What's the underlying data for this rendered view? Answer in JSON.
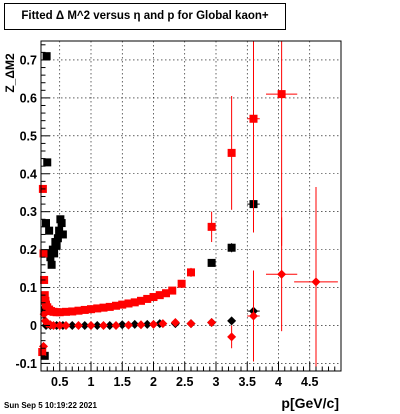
{
  "header": {
    "title": "Fitted Δ M^2 versus η and p for Global kaon+",
    "timestamp": "Sun Sep  5 10:19:22 2021"
  },
  "chart_data": {
    "type": "scatter",
    "title": "Fitted Δ M^2 versus η and p for Global kaon+",
    "xlabel": "p[GeV/c]",
    "ylabel": "Z_ΔM2",
    "xlim": [
      0.2,
      5.0
    ],
    "ylim": [
      -0.12,
      0.75
    ],
    "xticks": [
      0.5,
      1,
      1.5,
      2,
      2.5,
      3,
      3.5,
      4,
      4.5
    ],
    "xtick_labels": [
      "0.5",
      "1",
      "1.5",
      "2",
      "2.5",
      "3",
      "3.5",
      "4",
      "4.5"
    ],
    "yticks": [
      -0.1,
      0,
      0.1,
      0.2,
      0.3,
      0.4,
      0.5,
      0.6,
      0.7
    ],
    "ytick_labels": [
      "-0.1",
      "0",
      "0.1",
      "0.2",
      "0.3",
      "0.4",
      "0.5",
      "0.6",
      "0.7"
    ],
    "grid": true,
    "colors": {
      "black": "#000000",
      "red": "#ff0000"
    },
    "series": [
      {
        "marker": "square",
        "color": "#000000",
        "points": [
          {
            "x": 0.26,
            "y": -0.08
          },
          {
            "x": 0.27,
            "y": 0.04
          },
          {
            "x": 0.28,
            "y": 0.27
          },
          {
            "x": 0.29,
            "y": 0.71
          },
          {
            "x": 0.3,
            "y": 0.43
          },
          {
            "x": 0.31,
            "y": 0.19
          },
          {
            "x": 0.33,
            "y": 0.25
          },
          {
            "x": 0.35,
            "y": 0.18
          },
          {
            "x": 0.37,
            "y": 0.16
          },
          {
            "x": 0.39,
            "y": 0.2
          },
          {
            "x": 0.41,
            "y": 0.19
          },
          {
            "x": 0.43,
            "y": 0.22
          },
          {
            "x": 0.45,
            "y": 0.21
          },
          {
            "x": 0.47,
            "y": 0.23
          },
          {
            "x": 0.49,
            "y": 0.25
          },
          {
            "x": 0.51,
            "y": 0.28
          },
          {
            "x": 0.53,
            "y": 0.27
          },
          {
            "x": 0.55,
            "y": 0.24
          },
          {
            "x": 2.93,
            "y": 0.165,
            "ex": 0.04,
            "ey": 0.008
          },
          {
            "x": 3.25,
            "y": 0.205,
            "ex": 0.05,
            "ey": 0.012
          },
          {
            "x": 3.6,
            "y": 0.32,
            "ex": 0.1,
            "ey": 0.03
          }
        ]
      },
      {
        "marker": "square",
        "color": "#ff0000",
        "points": [
          {
            "x": 0.22,
            "y": -0.07
          },
          {
            "x": 0.23,
            "y": 0.36
          },
          {
            "x": 0.24,
            "y": 0.19
          },
          {
            "x": 0.25,
            "y": 0.12
          },
          {
            "x": 0.26,
            "y": 0.08
          },
          {
            "x": 0.27,
            "y": 0.065
          },
          {
            "x": 0.28,
            "y": 0.055
          },
          {
            "x": 0.3,
            "y": 0.048
          },
          {
            "x": 0.33,
            "y": 0.042
          },
          {
            "x": 0.36,
            "y": 0.038
          },
          {
            "x": 0.4,
            "y": 0.036
          },
          {
            "x": 0.45,
            "y": 0.035
          },
          {
            "x": 0.5,
            "y": 0.035
          },
          {
            "x": 0.6,
            "y": 0.036
          },
          {
            "x": 0.7,
            "y": 0.037
          },
          {
            "x": 0.8,
            "y": 0.039
          },
          {
            "x": 0.9,
            "y": 0.041
          },
          {
            "x": 1.0,
            "y": 0.043
          },
          {
            "x": 1.1,
            "y": 0.045
          },
          {
            "x": 1.2,
            "y": 0.047
          },
          {
            "x": 1.3,
            "y": 0.049
          },
          {
            "x": 1.4,
            "y": 0.052
          },
          {
            "x": 1.5,
            "y": 0.055
          },
          {
            "x": 1.6,
            "y": 0.058
          },
          {
            "x": 1.7,
            "y": 0.061
          },
          {
            "x": 1.8,
            "y": 0.065
          },
          {
            "x": 1.9,
            "y": 0.07
          },
          {
            "x": 2.0,
            "y": 0.075
          },
          {
            "x": 2.1,
            "y": 0.08
          },
          {
            "x": 2.2,
            "y": 0.085
          },
          {
            "x": 2.3,
            "y": 0.092
          },
          {
            "x": 2.45,
            "y": 0.11,
            "ex": 0.04
          },
          {
            "x": 2.6,
            "y": 0.14,
            "ex": 0.04,
            "ey": 0.012
          },
          {
            "x": 2.93,
            "y": 0.26,
            "ex": 0.05,
            "ey": 0.04
          },
          {
            "x": 3.25,
            "y": 0.455,
            "ex": 0.06,
            "ey": 0.15
          },
          {
            "x": 3.6,
            "y": 0.545,
            "ex": 0.1,
            "ey": 0.3
          },
          {
            "x": 4.05,
            "y": 0.61,
            "ex": 0.25,
            "ey": 0.4
          }
        ]
      },
      {
        "marker": "diamond",
        "color": "#000000",
        "points": [
          {
            "x": 0.28,
            "y": 0.0
          },
          {
            "x": 0.35,
            "y": 0.0
          },
          {
            "x": 0.45,
            "y": 0.0
          },
          {
            "x": 0.55,
            "y": 0.0
          },
          {
            "x": 0.7,
            "y": 0.0
          },
          {
            "x": 0.9,
            "y": 0.0
          },
          {
            "x": 1.1,
            "y": 0.0
          },
          {
            "x": 1.3,
            "y": 0.0
          },
          {
            "x": 1.5,
            "y": 0.002
          },
          {
            "x": 1.7,
            "y": 0.003
          },
          {
            "x": 1.9,
            "y": 0.003
          },
          {
            "x": 2.1,
            "y": 0.005
          },
          {
            "x": 2.35,
            "y": 0.005
          },
          {
            "x": 2.6,
            "y": 0.005,
            "ex": 0.04
          },
          {
            "x": 2.93,
            "y": 0.008,
            "ex": 0.04
          },
          {
            "x": 3.25,
            "y": 0.012,
            "ex": 0.05
          },
          {
            "x": 3.6,
            "y": 0.038,
            "ex": 0.1,
            "ey": 0.015
          }
        ]
      },
      {
        "marker": "diamond",
        "color": "#ff0000",
        "points": [
          {
            "x": 0.24,
            "y": -0.055
          },
          {
            "x": 0.25,
            "y": 0.03
          },
          {
            "x": 0.27,
            "y": 0.012
          },
          {
            "x": 0.3,
            "y": 0.005
          },
          {
            "x": 0.35,
            "y": 0.002
          },
          {
            "x": 0.4,
            "y": 0.0
          },
          {
            "x": 0.5,
            "y": 0.0
          },
          {
            "x": 0.6,
            "y": 0.0
          },
          {
            "x": 0.8,
            "y": 0.0
          },
          {
            "x": 1.0,
            "y": 0.0
          },
          {
            "x": 1.2,
            "y": 0.0
          },
          {
            "x": 1.4,
            "y": 0.0
          },
          {
            "x": 1.6,
            "y": 0.001
          },
          {
            "x": 1.8,
            "y": 0.002
          },
          {
            "x": 2.0,
            "y": 0.003
          },
          {
            "x": 2.15,
            "y": 0.005
          },
          {
            "x": 2.35,
            "y": 0.008
          },
          {
            "x": 2.6,
            "y": 0.005,
            "ex": 0.04
          },
          {
            "x": 2.93,
            "y": 0.008,
            "ex": 0.04
          },
          {
            "x": 3.25,
            "y": -0.03,
            "ex": 0.06,
            "ey": 0.03
          },
          {
            "x": 3.6,
            "y": 0.025,
            "ex": 0.1,
            "ey": 0.12
          },
          {
            "x": 4.05,
            "y": 0.135,
            "ex": 0.25,
            "ey": 0.15
          },
          {
            "x": 4.6,
            "y": 0.115,
            "ex": 0.35,
            "ey": 0.25
          }
        ]
      }
    ]
  }
}
